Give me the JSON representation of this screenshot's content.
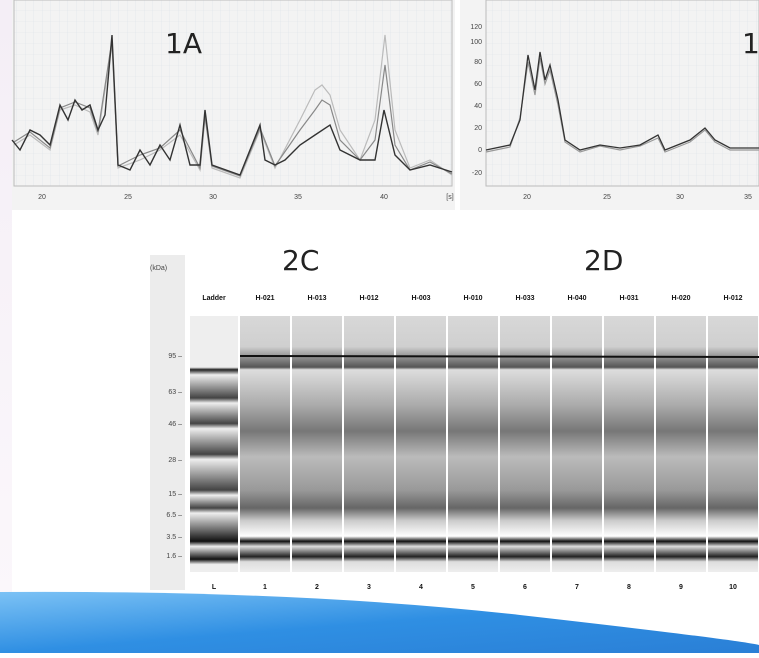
{
  "panel_1a": {
    "label": "1A",
    "x_ticks": [
      "20",
      "25",
      "30",
      "35",
      "40",
      "[s]"
    ]
  },
  "panel_1b": {
    "label": "1",
    "y_ticks": [
      "120",
      "100",
      "80",
      "60",
      "40",
      "20",
      "0",
      "-20"
    ],
    "x_ticks": [
      "20",
      "25",
      "30",
      "35"
    ]
  },
  "gel": {
    "unit": "(kDa)",
    "left_label": "2C",
    "right_label": "2D",
    "lanes": [
      "Ladder",
      "H-021",
      "H-013",
      "H-012",
      "H-003",
      "H-010",
      "H-033",
      "H-040",
      "H-031",
      "H-020",
      "H-012"
    ],
    "size_markers": [
      "95 –",
      "63 –",
      "46 –",
      "28 –",
      "15 –",
      "6.5 –",
      "3.5 –",
      "1.6 –"
    ],
    "lane_numbers": [
      "L",
      "1",
      "2",
      "3",
      "4",
      "5",
      "6",
      "7",
      "8",
      "9",
      "10"
    ]
  }
}
